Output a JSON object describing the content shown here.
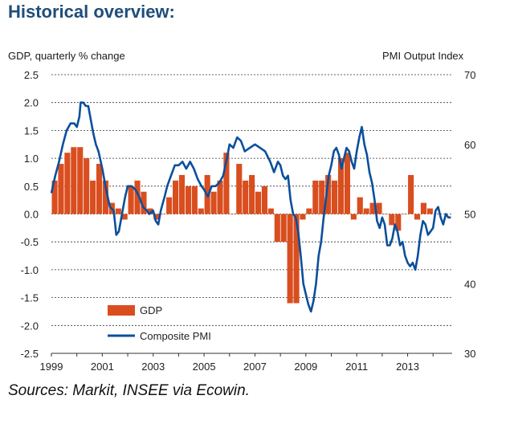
{
  "page": {
    "title": "Historical overview:",
    "source": "Sources: Markit, INSEE via Ecowin."
  },
  "chart_data": {
    "type": "bar+line",
    "title": "Historical overview:",
    "y_left_label": "GDP, quarterly % change",
    "y_right_label": "PMI Output  Index",
    "y_left_lim": [
      -2.5,
      2.5
    ],
    "y_left_ticks": [
      "2.5",
      "2.0",
      "1.5",
      "1.0",
      "0.5",
      "0.0",
      "-0.5",
      "-1.0",
      "-1.5",
      "-2.0",
      "-2.5"
    ],
    "y_right_lim": [
      30,
      70
    ],
    "y_right_ticks": [
      "70",
      "60",
      "50",
      "40",
      "30"
    ],
    "x_range": [
      1999.0,
      2014.75
    ],
    "x_ticks": [
      "1999",
      "2001",
      "2003",
      "2005",
      "2007",
      "2009",
      "2011",
      "2013"
    ],
    "grid": "horizontal dashed",
    "legend": {
      "placement": "bottom-left",
      "entries": [
        "GDP",
        "Composite PMI"
      ]
    },
    "colors": {
      "gdp": "#d94e1f",
      "pmi": "#0b4f9c",
      "title": "#1f4e79"
    },
    "series": [
      {
        "name": "GDP",
        "kind": "bar",
        "axis": "left",
        "start": 1999.0,
        "step": 0.25,
        "values": [
          0.6,
          0.9,
          1.1,
          1.2,
          1.2,
          1.0,
          0.6,
          0.9,
          0.6,
          0.2,
          0.1,
          -0.1,
          0.5,
          0.6,
          0.4,
          0.1,
          -0.1,
          0.0,
          0.3,
          0.6,
          0.7,
          0.5,
          0.5,
          0.1,
          0.7,
          0.4,
          0.6,
          1.1,
          0.0,
          0.9,
          0.6,
          0.7,
          0.4,
          0.5,
          0.1,
          -0.5,
          -0.5,
          -1.6,
          -1.6,
          -0.1,
          0.1,
          0.6,
          0.6,
          0.7,
          0.6,
          1.0,
          1.1,
          -0.1,
          0.3,
          0.1,
          0.2,
          0.2,
          0.0,
          -0.2,
          -0.3,
          0.0,
          0.7,
          -0.1,
          0.2,
          0.1
        ]
      },
      {
        "name": "Composite PMI",
        "kind": "line",
        "axis": "right",
        "points": [
          [
            1999.0,
            53.0
          ],
          [
            1999.15,
            55.5
          ],
          [
            1999.3,
            57.5
          ],
          [
            1999.45,
            60.0
          ],
          [
            1999.6,
            62.0
          ],
          [
            1999.75,
            63.0
          ],
          [
            1999.9,
            63.0
          ],
          [
            2000.0,
            62.5
          ],
          [
            2000.1,
            64.0
          ],
          [
            2000.15,
            66.0
          ],
          [
            2000.25,
            66.0
          ],
          [
            2000.35,
            65.5
          ],
          [
            2000.45,
            65.5
          ],
          [
            2000.55,
            63.5
          ],
          [
            2000.65,
            61.5
          ],
          [
            2000.75,
            60.0
          ],
          [
            2000.85,
            59.0
          ],
          [
            2001.0,
            56.5
          ],
          [
            2001.15,
            53.5
          ],
          [
            2001.3,
            51.0
          ],
          [
            2001.45,
            50.5
          ],
          [
            2001.55,
            47.0
          ],
          [
            2001.65,
            47.5
          ],
          [
            2001.8,
            50.5
          ],
          [
            2001.9,
            52.5
          ],
          [
            2002.0,
            54.0
          ],
          [
            2002.15,
            54.0
          ],
          [
            2002.3,
            53.5
          ],
          [
            2002.45,
            52.5
          ],
          [
            2002.6,
            51.0
          ],
          [
            2002.75,
            50.5
          ],
          [
            2002.85,
            50.0
          ],
          [
            2003.0,
            50.5
          ],
          [
            2003.1,
            49.0
          ],
          [
            2003.2,
            48.5
          ],
          [
            2003.3,
            50.5
          ],
          [
            2003.45,
            52.5
          ],
          [
            2003.55,
            54.0
          ],
          [
            2003.7,
            55.5
          ],
          [
            2003.85,
            57.0
          ],
          [
            2004.0,
            57.0
          ],
          [
            2004.15,
            57.5
          ],
          [
            2004.3,
            56.5
          ],
          [
            2004.45,
            57.5
          ],
          [
            2004.6,
            56.5
          ],
          [
            2004.75,
            55.0
          ],
          [
            2004.9,
            54.0
          ],
          [
            2005.0,
            53.5
          ],
          [
            2005.15,
            52.5
          ],
          [
            2005.3,
            54.0
          ],
          [
            2005.45,
            54.0
          ],
          [
            2005.6,
            54.5
          ],
          [
            2005.75,
            55.5
          ],
          [
            2005.9,
            58.0
          ],
          [
            2006.0,
            60.0
          ],
          [
            2006.15,
            59.5
          ],
          [
            2006.3,
            61.0
          ],
          [
            2006.45,
            60.5
          ],
          [
            2006.6,
            59.0
          ],
          [
            2006.8,
            59.5
          ],
          [
            2007.0,
            60.0
          ],
          [
            2007.2,
            59.5
          ],
          [
            2007.4,
            59.0
          ],
          [
            2007.6,
            57.5
          ],
          [
            2007.75,
            56.0
          ],
          [
            2007.9,
            57.5
          ],
          [
            2008.0,
            57.0
          ],
          [
            2008.1,
            55.5
          ],
          [
            2008.2,
            55.0
          ],
          [
            2008.3,
            55.5
          ],
          [
            2008.4,
            52.0
          ],
          [
            2008.5,
            50.0
          ],
          [
            2008.6,
            49.5
          ],
          [
            2008.7,
            47.5
          ],
          [
            2008.8,
            44.0
          ],
          [
            2008.9,
            40.0
          ],
          [
            2009.0,
            38.5
          ],
          [
            2009.1,
            37.0
          ],
          [
            2009.2,
            36.0
          ],
          [
            2009.3,
            37.5
          ],
          [
            2009.4,
            40.0
          ],
          [
            2009.5,
            44.0
          ],
          [
            2009.6,
            46.0
          ],
          [
            2009.7,
            49.5
          ],
          [
            2009.8,
            52.5
          ],
          [
            2009.9,
            55.5
          ],
          [
            2010.0,
            57.0
          ],
          [
            2010.1,
            59.0
          ],
          [
            2010.2,
            59.5
          ],
          [
            2010.3,
            58.5
          ],
          [
            2010.4,
            56.5
          ],
          [
            2010.5,
            58.0
          ],
          [
            2010.6,
            59.5
          ],
          [
            2010.7,
            59.0
          ],
          [
            2010.8,
            57.5
          ],
          [
            2010.9,
            56.5
          ],
          [
            2011.0,
            59.0
          ],
          [
            2011.1,
            61.0
          ],
          [
            2011.2,
            62.5
          ],
          [
            2011.3,
            60.0
          ],
          [
            2011.4,
            58.5
          ],
          [
            2011.5,
            56.0
          ],
          [
            2011.6,
            54.5
          ],
          [
            2011.7,
            52.0
          ],
          [
            2011.8,
            49.0
          ],
          [
            2011.9,
            48.0
          ],
          [
            2012.0,
            49.5
          ],
          [
            2012.1,
            48.5
          ],
          [
            2012.2,
            45.5
          ],
          [
            2012.3,
            45.5
          ],
          [
            2012.4,
            46.5
          ],
          [
            2012.5,
            48.5
          ],
          [
            2012.6,
            47.5
          ],
          [
            2012.7,
            45.5
          ],
          [
            2012.8,
            46.0
          ],
          [
            2012.9,
            44.0
          ],
          [
            2013.0,
            43.0
          ],
          [
            2013.1,
            42.5
          ],
          [
            2013.2,
            43.0
          ],
          [
            2013.3,
            42.0
          ],
          [
            2013.4,
            44.0
          ],
          [
            2013.5,
            47.0
          ],
          [
            2013.6,
            49.0
          ],
          [
            2013.7,
            48.5
          ],
          [
            2013.8,
            47.0
          ],
          [
            2013.9,
            47.5
          ],
          [
            2014.0,
            48.0
          ],
          [
            2014.1,
            50.5
          ],
          [
            2014.2,
            51.0
          ],
          [
            2014.3,
            49.5
          ],
          [
            2014.4,
            48.5
          ],
          [
            2014.5,
            50.0
          ],
          [
            2014.6,
            49.5
          ],
          [
            2014.7,
            49.5
          ]
        ]
      }
    ]
  }
}
